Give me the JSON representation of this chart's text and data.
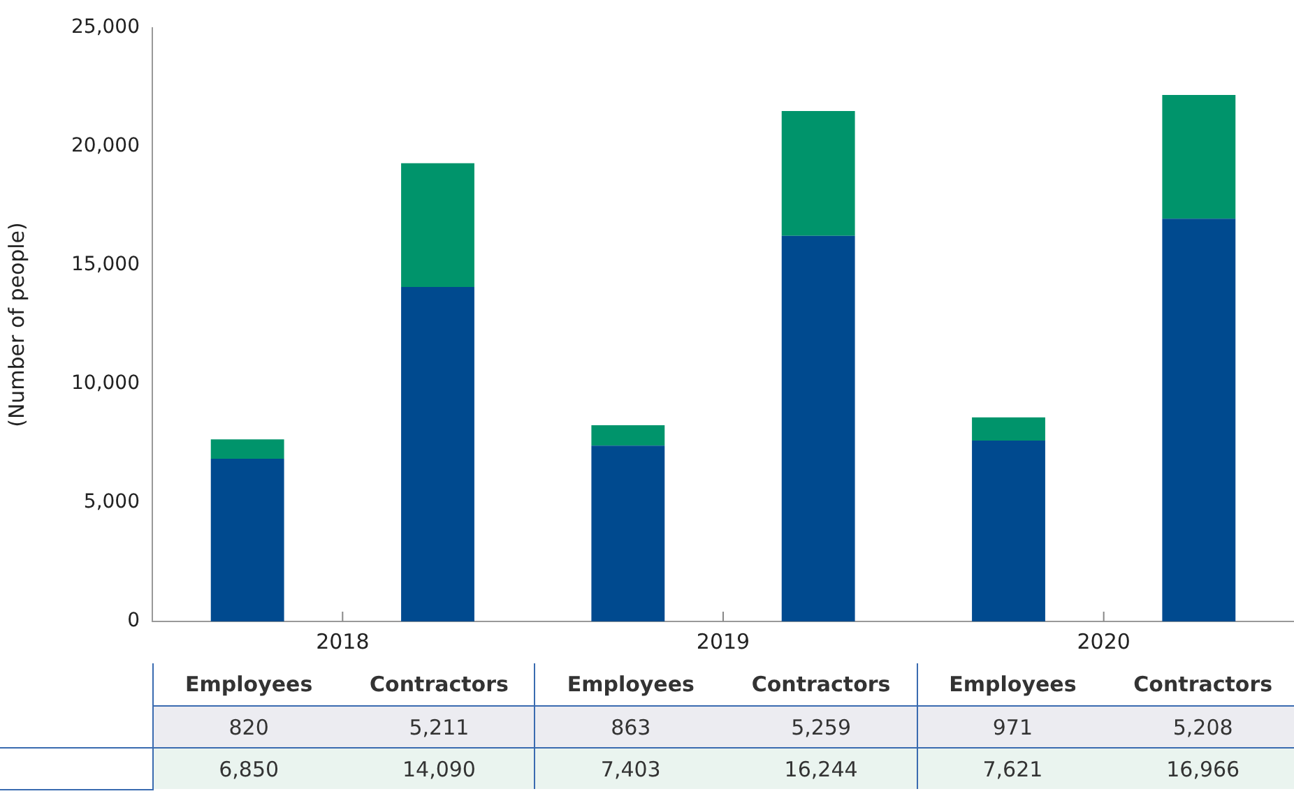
{
  "chart_data": {
    "type": "bar",
    "ylabel": "(Number of people)",
    "stacked": true,
    "legend": false,
    "grid": false,
    "categories": [
      "Employees",
      "Contractors",
      "Employees",
      "Contractors",
      "Employees",
      "Contractors"
    ],
    "annotations": [
      "2018",
      "2019",
      "2020"
    ],
    "series": [
      {
        "color": "#004a8f",
        "values": [
          6850,
          14090,
          7403,
          16244,
          7621,
          16966
        ],
        "value_labels": [
          "6,850",
          "14,090",
          "7,403",
          "16,244",
          "7,621",
          "16,966"
        ]
      },
      {
        "color": "#00946b",
        "values": [
          820,
          5211,
          863,
          5259,
          971,
          5208
        ],
        "value_labels": [
          "820",
          "5,211",
          "863",
          "5,259",
          "971",
          "5,208"
        ]
      }
    ],
    "ylim": [
      0,
      25000
    ],
    "yticks": [
      0,
      {
        "value": 5000,
        "label": "5,000"
      },
      {
        "value": 10000,
        "label": "10,000"
      },
      {
        "value": 15000,
        "label": "15,000"
      },
      {
        "value": 20000,
        "label": "20,000"
      },
      {
        "value": 25000,
        "label": "25,000"
      }
    ]
  }
}
